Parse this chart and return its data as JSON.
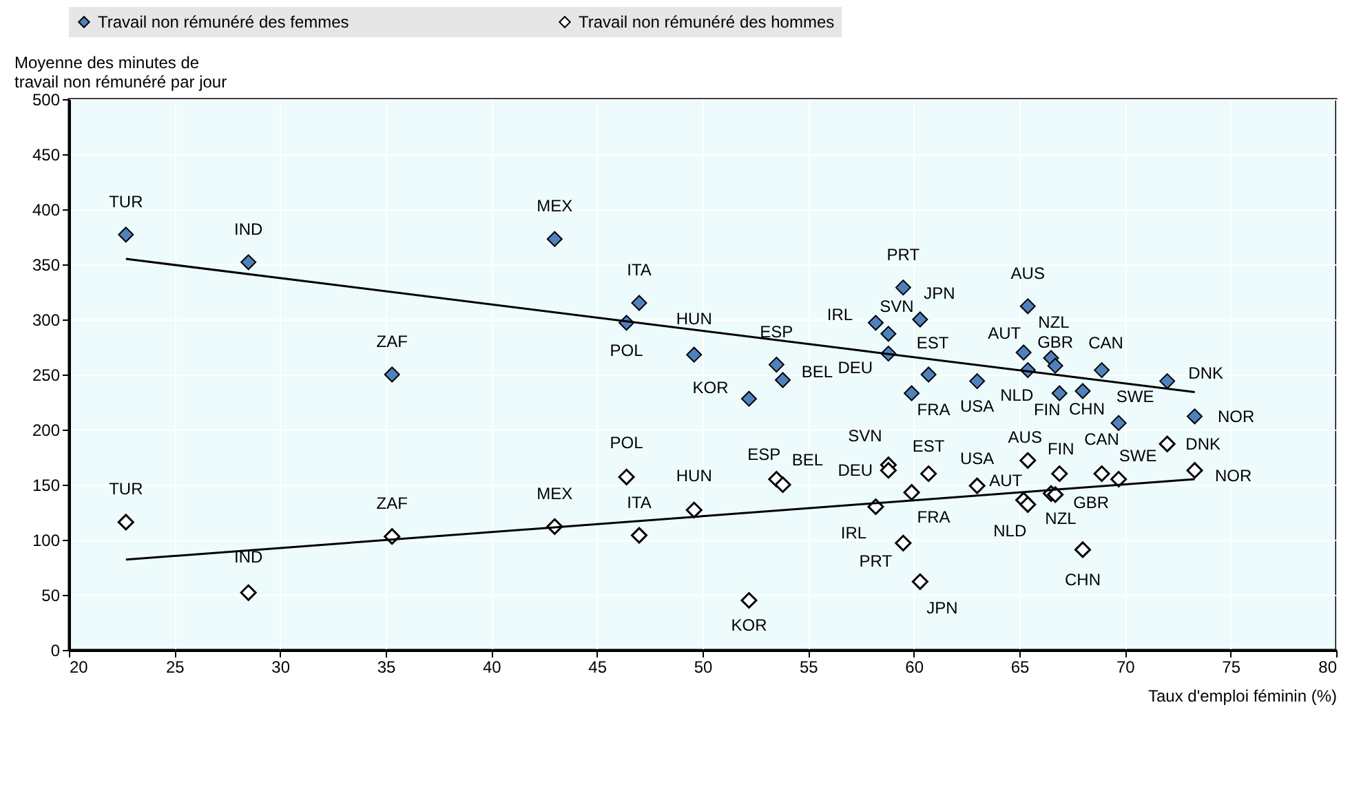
{
  "chart_data": {
    "type": "scatter",
    "xlabel": "Taux d'emploi féminin (%)",
    "ylabel": "Moyenne des minutes de\ntravail non rémunéré par jour",
    "xlim": [
      20,
      80
    ],
    "xticks": [
      20,
      25,
      30,
      35,
      40,
      45,
      50,
      55,
      60,
      65,
      70,
      75,
      80
    ],
    "ylim": [
      0,
      500
    ],
    "yticks": [
      0,
      50,
      100,
      150,
      200,
      250,
      300,
      350,
      400,
      450,
      500
    ],
    "grid": true,
    "legend": "top",
    "marker": "diamond",
    "series": [
      {
        "name": "Travail non rémunéré des femmes",
        "color": "#4f81bd",
        "x": [
          22.7,
          28.5,
          35.3,
          43.0,
          46.4,
          47.0,
          49.6,
          53.5,
          53.8,
          52.2,
          58.2,
          58.8,
          59.5,
          60.3,
          58.8,
          60.7,
          59.9,
          63.0,
          65.4,
          65.2,
          65.4,
          66.5,
          66.7,
          66.9,
          68.9,
          68.0,
          69.7,
          72.0,
          73.3
        ],
        "values": [
          377,
          352,
          250,
          373,
          297,
          315,
          268,
          259,
          245,
          228,
          297,
          287,
          329,
          300,
          269,
          250,
          233,
          244,
          312,
          270,
          254,
          265,
          258,
          233,
          254,
          235,
          206,
          244,
          212
        ],
        "value_labels": [
          "TUR",
          "IND",
          "ZAF",
          "MEX",
          "POL",
          "ITA",
          "HUN",
          "ESP",
          "BEL",
          "KOR",
          "IRL",
          "SVN",
          "PRT",
          "JPN",
          "DEU",
          "EST",
          "FRA",
          "USA",
          "AUS",
          "AUT",
          "NLD",
          "NZL",
          "GBR",
          "FIN",
          "CAN",
          "CHN",
          "SWE",
          "DNK",
          "NOR"
        ]
      },
      {
        "name": "Travail non rémunéré des hommes",
        "color": "#ffffff",
        "x": [
          22.7,
          28.5,
          35.3,
          43.0,
          46.4,
          47.0,
          49.6,
          53.5,
          53.8,
          52.2,
          58.2,
          58.8,
          59.5,
          60.3,
          58.8,
          60.7,
          59.9,
          63.0,
          65.4,
          65.2,
          65.4,
          66.5,
          66.7,
          66.9,
          68.9,
          68.0,
          69.7,
          72.0,
          73.3
        ],
        "values": [
          116,
          52,
          103,
          112,
          157,
          104,
          127,
          155,
          150,
          45,
          130,
          168,
          97,
          62,
          163,
          160,
          143,
          149,
          172,
          136,
          132,
          142,
          141,
          160,
          160,
          91,
          155,
          187,
          163
        ],
        "value_labels": [
          "TUR",
          "IND",
          "ZAF",
          "MEX",
          "POL",
          "ITA",
          "HUN",
          "ESP",
          "BEL",
          "KOR",
          "IRL",
          "SVN",
          "PRT",
          "JPN",
          "DEU",
          "EST",
          "FRA",
          "USA",
          "AUS",
          "AUT",
          "NLD",
          "NZL",
          "GBR",
          "FIN",
          "CAN",
          "CHN",
          "SWE",
          "DNK",
          "NOR"
        ]
      },
      {
        "type": "line",
        "color": "#000000",
        "marker": "none",
        "x": [
          22.7,
          73.3
        ],
        "values": [
          355,
          234
        ]
      },
      {
        "type": "line",
        "color": "#000000",
        "marker": "none",
        "x": [
          22.7,
          73.3
        ],
        "values": [
          82,
          155
        ]
      }
    ]
  }
}
